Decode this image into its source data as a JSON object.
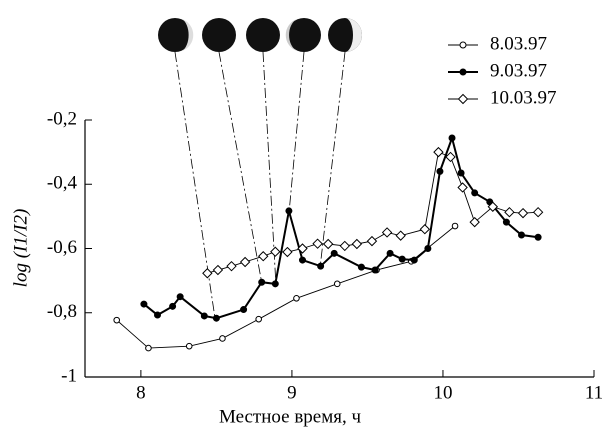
{
  "chart_data": {
    "type": "line",
    "x_label": "Местное время, ч",
    "y_label": "log (I1/I2)",
    "xlim": [
      7.63,
      11
    ],
    "ylim": [
      -1,
      -0.2
    ],
    "xticks": [
      8,
      9,
      10,
      11
    ],
    "yticks": [
      {
        "value": -0.2,
        "label": "-0,2"
      },
      {
        "value": -0.4,
        "label": "-0,4"
      },
      {
        "value": -0.6,
        "label": "-0,6"
      },
      {
        "value": -0.8,
        "label": "-0,8"
      },
      -1
    ],
    "legend": "upper right",
    "series": [
      {
        "name": "8.03.97",
        "color": "#000000",
        "marker": "open-circle",
        "x": [
          7.84,
          8.05,
          8.32,
          8.54,
          8.78,
          9.03,
          9.3,
          9.56,
          9.79,
          10.08
        ],
        "values": [
          -0.823,
          -0.91,
          -0.904,
          -0.88,
          -0.82,
          -0.755,
          -0.71,
          -0.667,
          -0.64,
          -0.53
        ]
      },
      {
        "name": "9.03.97",
        "color": "#000000",
        "marker": "filled-circle",
        "x": [
          8.02,
          8.11,
          8.21,
          8.26,
          8.42,
          8.5,
          8.68,
          8.8,
          8.89,
          8.98,
          9.07,
          9.19,
          9.28,
          9.46,
          9.55,
          9.65,
          9.73,
          9.81,
          9.9,
          9.98,
          10.06,
          10.12,
          10.21,
          10.31,
          10.42,
          10.52,
          10.63
        ],
        "values": [
          -0.773,
          -0.807,
          -0.78,
          -0.75,
          -0.81,
          -0.817,
          -0.79,
          -0.705,
          -0.71,
          -0.483,
          -0.636,
          -0.655,
          -0.615,
          -0.658,
          -0.667,
          -0.615,
          -0.633,
          -0.636,
          -0.6,
          -0.36,
          -0.256,
          -0.365,
          -0.427,
          -0.455,
          -0.518,
          -0.558,
          -0.565
        ]
      },
      {
        "name": "10.03.97",
        "color": "#000000",
        "marker": "open-diamond",
        "x": [
          8.44,
          8.51,
          8.6,
          8.69,
          8.81,
          8.89,
          8.97,
          9.07,
          9.17,
          9.24,
          9.35,
          9.43,
          9.53,
          9.63,
          9.72,
          9.88,
          9.97,
          10.05,
          10.13,
          10.21,
          10.33,
          10.44,
          10.53,
          10.63
        ],
        "values": [
          -0.677,
          -0.667,
          -0.655,
          -0.642,
          -0.624,
          -0.61,
          -0.611,
          -0.6,
          -0.585,
          -0.586,
          -0.592,
          -0.586,
          -0.577,
          -0.55,
          -0.56,
          -0.54,
          -0.3,
          -0.315,
          -0.41,
          -0.518,
          -0.47,
          -0.487,
          -0.49,
          -0.487
        ]
      }
    ]
  }
}
